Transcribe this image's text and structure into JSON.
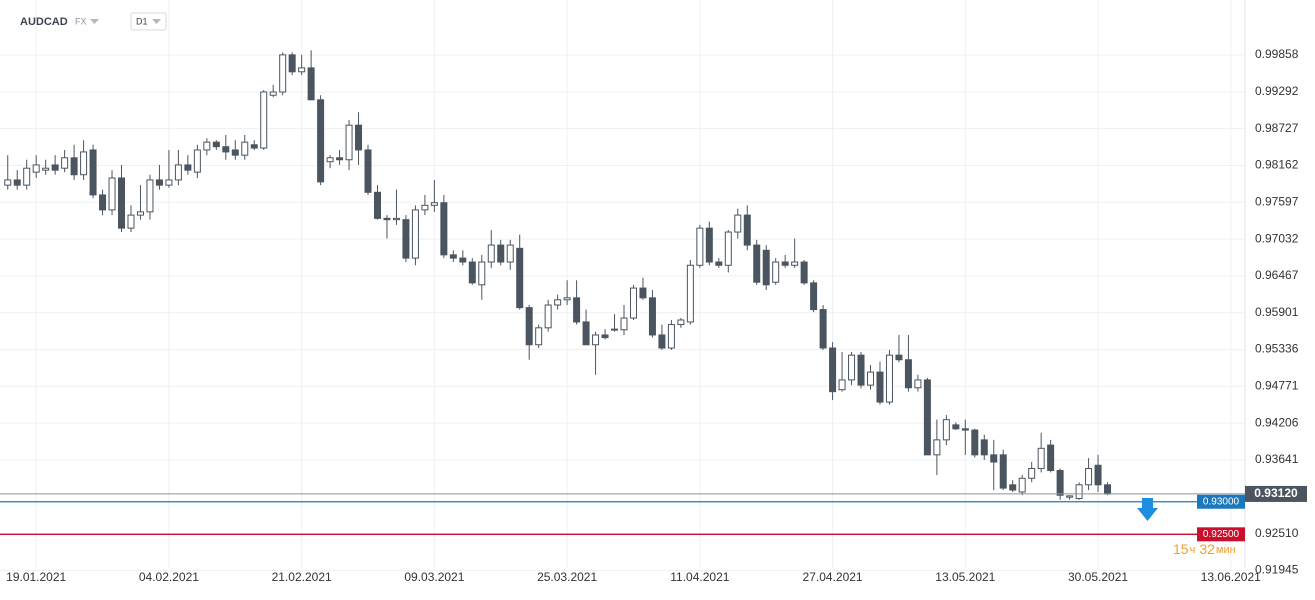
{
  "header": {
    "symbol": "AUDCAD",
    "market": "FX",
    "timeframe": "D1"
  },
  "chart_data": {
    "type": "candlestick",
    "categories": [
      null,
      null,
      null,
      "19.01.2021",
      null,
      null,
      null,
      null,
      null,
      null,
      null,
      null,
      null,
      null,
      null,
      null,
      null,
      "04.02.2021",
      null,
      null,
      null,
      null,
      null,
      null,
      null,
      null,
      null,
      null,
      null,
      null,
      null,
      "21.02.2021",
      null,
      null,
      null,
      null,
      null,
      null,
      null,
      null,
      null,
      null,
      null,
      null,
      null,
      "09.03.2021",
      null,
      null,
      null,
      null,
      null,
      null,
      null,
      null,
      null,
      null,
      null,
      null,
      null,
      "25.03.2021",
      null,
      null,
      null,
      null,
      null,
      null,
      null,
      null,
      null,
      null,
      null,
      null,
      null,
      "11.04.2021",
      null,
      null,
      null,
      null,
      null,
      null,
      null,
      null,
      null,
      null,
      null,
      null,
      null,
      "27.04.2021",
      null,
      null,
      null,
      null,
      null,
      null,
      null,
      null,
      null,
      null,
      null,
      null,
      null,
      "13.05.2021",
      null,
      null,
      null,
      null,
      null,
      null,
      null,
      null,
      null,
      null,
      null,
      null,
      null,
      "30.05.2021",
      null,
      null,
      null,
      null,
      null,
      null,
      null,
      null,
      null,
      null,
      null,
      null,
      null,
      "13.06.2021",
      null
    ],
    "open": [
      0.9786,
      0.9794,
      0.9786,
      0.9806,
      0.9809,
      0.9817,
      0.9812,
      0.9828,
      0.9802,
      0.984,
      0.9771,
      0.9748,
      0.9797,
      0.972,
      0.974,
      0.9745,
      0.9794,
      0.9786,
      0.9794,
      0.9817,
      0.9806,
      0.984,
      0.9852,
      0.9845,
      0.984,
      0.9832,
      0.9848,
      0.9843,
      0.9924,
      0.9929,
      0.9986,
      0.996,
      0.9966,
      0.9917,
      0.9822,
      0.9828,
      0.9825,
      0.9878,
      0.984,
      0.9775,
      0.9735,
      0.9733,
      0.9733,
      0.9674,
      0.9748,
      0.9755,
      0.9759,
      0.9679,
      0.9674,
      0.9668,
      0.9633,
      0.9668,
      0.9694,
      0.9668,
      0.9689,
      0.9598,
      0.9541,
      0.9567,
      0.9602,
      0.961,
      0.9613,
      0.9576,
      0.9541,
      0.9556,
      0.9565,
      0.9564,
      0.9582,
      0.9628,
      0.9613,
      0.9556,
      0.9536,
      0.9572,
      0.9576,
      0.9663,
      0.972,
      0.9668,
      0.9663,
      0.9714,
      0.974,
      0.9694,
      0.9686,
      0.9637,
      0.9668,
      0.9663,
      0.9668,
      0.9636,
      0.9595,
      0.9536,
      0.9472,
      0.9487,
      0.9525,
      0.9479,
      0.9499,
      0.9453,
      0.9525,
      0.9518,
      0.9475,
      0.9487,
      0.9372,
      0.9395,
      0.9418,
      0.9412,
      0.941,
      0.9395,
      0.9372,
      0.9372,
      0.9326,
      0.9315,
      0.9336,
      0.9351,
      0.9387,
      0.9348,
      0.9307,
      0.9305,
      0.9326,
      0.9356,
      0.9326,
      null,
      null,
      null,
      null,
      null,
      null,
      null,
      null,
      null,
      null,
      null,
      null,
      null,
      null
    ],
    "high": [
      0.9832,
      0.9809,
      0.9825,
      0.9832,
      0.9825,
      0.9832,
      0.984,
      0.9848,
      0.9855,
      0.9848,
      0.9779,
      0.9809,
      0.9817,
      0.9755,
      0.9786,
      0.9802,
      0.9817,
      0.984,
      0.984,
      0.9832,
      0.9848,
      0.9858,
      0.9855,
      0.9863,
      0.9855,
      0.9863,
      0.9855,
      0.9932,
      0.994,
      0.999,
      0.999,
      0.9986,
      0.9993,
      0.9924,
      0.9832,
      0.984,
      0.9886,
      0.9898,
      0.9848,
      0.9786,
      0.974,
      0.9779,
      0.974,
      0.9755,
      0.9771,
      0.9794,
      0.9771,
      0.9686,
      0.9686,
      0.9674,
      0.9679,
      0.9717,
      0.9702,
      0.9702,
      0.971,
      0.9602,
      0.9572,
      0.961,
      0.9618,
      0.964,
      0.964,
      0.9595,
      0.9561,
      0.9565,
      0.9588,
      0.9602,
      0.9633,
      0.9644,
      0.9625,
      0.9572,
      0.9579,
      0.9582,
      0.9671,
      0.9725,
      0.973,
      0.9674,
      0.9717,
      0.975,
      0.9755,
      0.9702,
      0.9694,
      0.9674,
      0.9679,
      0.9704,
      0.9671,
      0.964,
      0.9602,
      0.9545,
      0.953,
      0.953,
      0.953,
      0.951,
      0.9515,
      0.9533,
      0.9556,
      0.9556,
      0.9495,
      0.949,
      0.9426,
      0.9433,
      0.9422,
      0.9426,
      0.9412,
      0.9403,
      0.9395,
      0.938,
      0.9333,
      0.9341,
      0.9361,
      0.9406,
      0.9395,
      0.9351,
      0.931,
      0.933,
      0.9367,
      0.9372,
      0.933,
      null,
      null,
      null,
      null,
      null,
      null,
      null,
      null,
      null,
      null,
      null,
      null,
      null,
      null
    ],
    "low": [
      0.9779,
      0.9779,
      0.9779,
      0.9797,
      0.9802,
      0.9802,
      0.9806,
      0.9794,
      0.9794,
      0.9766,
      0.974,
      0.974,
      0.9714,
      0.9714,
      0.9733,
      0.9733,
      0.9779,
      0.9782,
      0.9786,
      0.9802,
      0.9797,
      0.9832,
      0.984,
      0.9825,
      0.9825,
      0.9825,
      0.984,
      0.984,
      0.9921,
      0.9924,
      0.9955,
      0.9955,
      0.9917,
      0.9786,
      0.9812,
      0.9817,
      0.9809,
      0.9817,
      0.9771,
      0.9733,
      0.9704,
      0.9725,
      0.9668,
      0.9663,
      0.974,
      0.9745,
      0.9674,
      0.9668,
      0.9663,
      0.9633,
      0.961,
      0.9659,
      0.9663,
      0.9656,
      0.9595,
      0.9518,
      0.9536,
      0.9561,
      0.9595,
      0.9602,
      0.9572,
      0.9541,
      0.9495,
      0.9549,
      0.9561,
      0.9556,
      0.9579,
      0.961,
      0.9552,
      0.9533,
      0.9533,
      0.9567,
      0.9572,
      0.9659,
      0.9663,
      0.9659,
      0.9652,
      0.9704,
      0.9686,
      0.9633,
      0.9625,
      0.9633,
      0.9659,
      0.9659,
      0.9633,
      0.9591,
      0.9533,
      0.9456,
      0.9469,
      0.9479,
      0.9474,
      0.9472,
      0.9449,
      0.9449,
      0.9514,
      0.9469,
      0.9469,
      0.9372,
      0.9341,
      0.9387,
      0.941,
      0.9372,
      0.9368,
      0.9364,
      0.9318,
      0.9318,
      0.9315,
      0.931,
      0.933,
      0.9345,
      0.9345,
      0.9303,
      0.9303,
      0.9303,
      0.9318,
      0.9315,
      0.931,
      null,
      null,
      null,
      null,
      null,
      null,
      null,
      null,
      null,
      null,
      null,
      null,
      null,
      null
    ],
    "close": [
      0.9794,
      0.9786,
      0.9812,
      0.9817,
      0.9812,
      0.9809,
      0.9828,
      0.9802,
      0.9837,
      0.9771,
      0.9748,
      0.9797,
      0.972,
      0.974,
      0.9745,
      0.9794,
      0.9786,
      0.9794,
      0.9817,
      0.9809,
      0.984,
      0.9852,
      0.9845,
      0.9837,
      0.9832,
      0.9852,
      0.9843,
      0.9929,
      0.9929,
      0.9986,
      0.996,
      0.9966,
      0.9917,
      0.9791,
      0.9828,
      0.9825,
      0.9878,
      0.984,
      0.9775,
      0.9735,
      0.9733,
      0.9735,
      0.9674,
      0.9748,
      0.9755,
      0.9759,
      0.9679,
      0.9674,
      0.9668,
      0.9636,
      0.9668,
      0.9694,
      0.9668,
      0.9694,
      0.9598,
      0.9541,
      0.9567,
      0.9602,
      0.961,
      0.9613,
      0.9576,
      0.9541,
      0.9556,
      0.9552,
      0.9564,
      0.9582,
      0.9628,
      0.9613,
      0.9556,
      0.9536,
      0.9572,
      0.9579,
      0.9663,
      0.972,
      0.9668,
      0.9663,
      0.9714,
      0.974,
      0.9694,
      0.9637,
      0.9633,
      0.9668,
      0.9663,
      0.9668,
      0.9636,
      0.9595,
      0.9536,
      0.9469,
      0.9487,
      0.9525,
      0.9479,
      0.9499,
      0.9453,
      0.9525,
      0.9518,
      0.9475,
      0.9487,
      0.9372,
      0.9395,
      0.9426,
      0.9412,
      0.941,
      0.9372,
      0.9372,
      0.9361,
      0.9321,
      0.9318,
      0.9336,
      0.9351,
      0.9382,
      0.9348,
      0.931,
      0.9309,
      0.9326,
      0.9351,
      0.9326,
      0.9312,
      null,
      null,
      null,
      null,
      null,
      null,
      null,
      null,
      null,
      null,
      null,
      null,
      null,
      null
    ],
    "up_color": "#ffffff",
    "down_color": "#4a5560",
    "ylim": [
      0.91983,
      1.00702
    ],
    "yticks": [
      0.99858,
      0.99292,
      0.98727,
      0.98162,
      0.97597,
      0.97032,
      0.96467,
      0.95901,
      0.95336,
      0.94771,
      0.94206,
      0.93641,
      {
        "value": 0.9251,
        "label": "0.92510"
      },
      0.91945
    ],
    "grid": true,
    "levels": [
      {
        "value": 0.93,
        "label": "0.93000",
        "color": "#1b78bd"
      },
      {
        "value": 0.925,
        "label": "0.92500",
        "color": "#c8102e"
      }
    ],
    "last_price": {
      "value": 0.9312,
      "label": "0.93120",
      "color": "#4a5560"
    },
    "countdown": {
      "hours": "15",
      "hours_unit": "ч",
      "minutes": "32",
      "minutes_unit": "мин",
      "color": "#f0a030"
    }
  }
}
